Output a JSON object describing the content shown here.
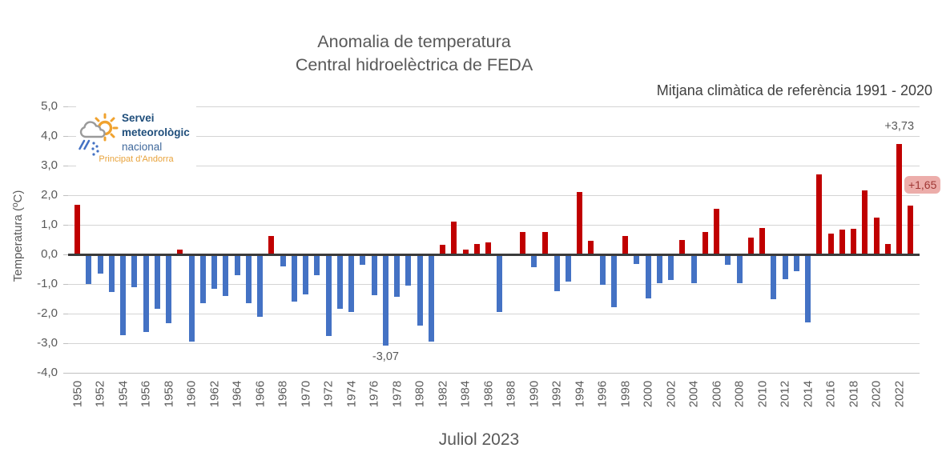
{
  "title": {
    "line1": "Anomalia de temperatura",
    "line2": "Central hidroelèctrica de FEDA"
  },
  "subtitle": "Mitjana climàtica de referència 1991 - 2020",
  "footer": "Juliol 2023",
  "logo": {
    "line1": "Servei",
    "line2": "meteorològic",
    "line3": "nacional",
    "caption": "Principat d'Andorra"
  },
  "chart_data": {
    "type": "bar",
    "title": "Anomalia de temperatura — Central hidroelèctrica de FEDA",
    "xlabel": "Juliol 2023",
    "ylabel": "Temperatura (ºC)",
    "ylim": [
      -4.0,
      5.0
    ],
    "ytick_labels": [
      "5,0",
      "4,0",
      "3,0",
      "2,0",
      "1,0",
      "0,0",
      "-1,0",
      "-2,0",
      "-3,0",
      "-4,0"
    ],
    "grid": true,
    "years": [
      1950,
      1951,
      1952,
      1953,
      1954,
      1955,
      1956,
      1957,
      1958,
      1959,
      1960,
      1961,
      1962,
      1963,
      1964,
      1965,
      1966,
      1967,
      1968,
      1969,
      1970,
      1971,
      1972,
      1973,
      1974,
      1975,
      1976,
      1977,
      1978,
      1979,
      1980,
      1981,
      1982,
      1983,
      1984,
      1985,
      1986,
      1987,
      1988,
      1989,
      1990,
      1991,
      1992,
      1993,
      1994,
      1995,
      1996,
      1997,
      1998,
      1999,
      2000,
      2001,
      2002,
      2003,
      2004,
      2005,
      2006,
      2007,
      2008,
      2009,
      2010,
      2011,
      2012,
      2013,
      2014,
      2015,
      2016,
      2017,
      2018,
      2019,
      2020,
      2021,
      2022,
      2023
    ],
    "values": [
      1.68,
      -1.0,
      -0.65,
      -1.27,
      -2.74,
      -1.1,
      -2.62,
      -1.85,
      -2.32,
      0.15,
      -2.95,
      -1.65,
      -1.15,
      -1.4,
      -0.7,
      -1.65,
      -2.12,
      0.62,
      -0.4,
      -1.6,
      -1.35,
      -0.7,
      -2.76,
      -1.84,
      -1.95,
      -0.36,
      -1.37,
      -3.07,
      -1.44,
      -1.06,
      -2.41,
      -2.94,
      0.33,
      1.1,
      0.16,
      0.34,
      0.4,
      -1.95,
      0.0,
      0.77,
      -0.43,
      0.75,
      -1.23,
      -0.92,
      2.11,
      0.46,
      -1.04,
      -1.78,
      0.62,
      -0.33,
      -1.49,
      -0.96,
      -0.86,
      0.49,
      -0.98,
      0.76,
      1.54,
      -0.36,
      -0.98,
      0.58,
      0.89,
      -1.52,
      -0.83,
      -0.58,
      -2.29,
      2.69,
      0.71,
      0.83,
      0.87,
      2.17,
      1.23,
      0.36,
      3.73,
      1.65
    ],
    "bar_colors": {
      "positive": "#c00000",
      "negative": "#4472c4"
    },
    "annotations": [
      {
        "year": 2022,
        "label": "+3,73",
        "pos": "above",
        "highlighted": false
      },
      {
        "year": 2023,
        "label": "+1,65",
        "pos": "right",
        "highlighted": true
      },
      {
        "year": 1977,
        "label": "-3,07",
        "pos": "below",
        "highlighted": false
      }
    ]
  }
}
